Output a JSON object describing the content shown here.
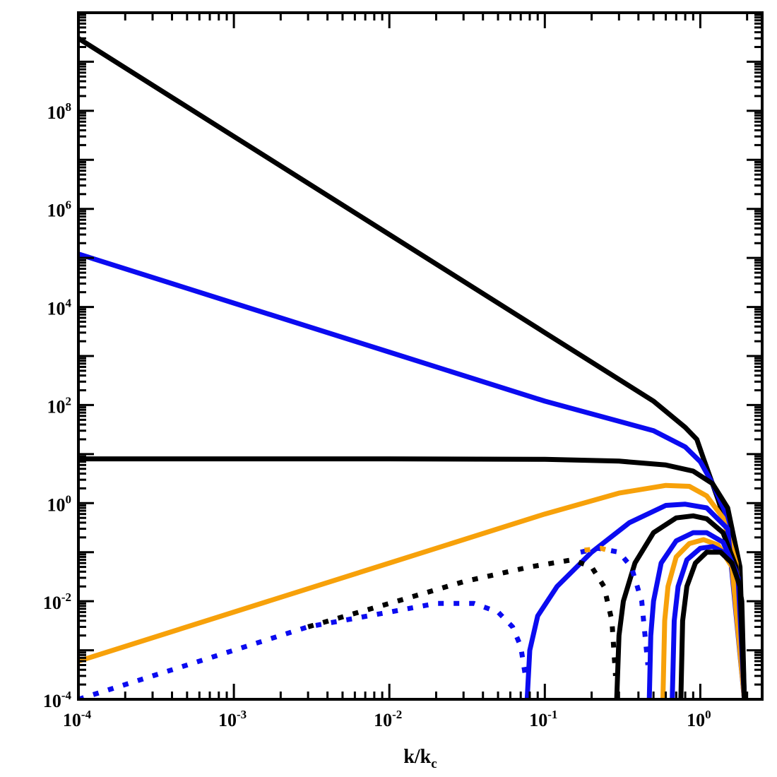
{
  "chart_data": {
    "type": "line",
    "title": "",
    "xlabel": {
      "base": "k/k",
      "sub": "c"
    },
    "ylabel": "",
    "x_scale": "log",
    "y_scale": "log",
    "xlim": [
      0.0001,
      2.5
    ],
    "ylim": [
      0.0001,
      10000000000
    ],
    "x_ticks": [
      {
        "value": 0.0001,
        "base": "10",
        "exp": "-4"
      },
      {
        "value": 0.001,
        "base": "10",
        "exp": "-3"
      },
      {
        "value": 0.01,
        "base": "10",
        "exp": "-2"
      },
      {
        "value": 0.1,
        "base": "10",
        "exp": "-1"
      },
      {
        "value": 1,
        "base": "10",
        "exp": "0"
      }
    ],
    "y_ticks": [
      {
        "value": 0.0001,
        "base": "10",
        "exp": "-4"
      },
      {
        "value": 0.01,
        "base": "10",
        "exp": "-2"
      },
      {
        "value": 1,
        "base": "10",
        "exp": "0"
      },
      {
        "value": 100,
        "base": "10",
        "exp": "2"
      },
      {
        "value": 10000,
        "base": "10",
        "exp": "4"
      },
      {
        "value": 1000000,
        "base": "10",
        "exp": "6"
      },
      {
        "value": 100000000,
        "base": "10",
        "exp": "8"
      }
    ],
    "grid": false,
    "legend": "none",
    "series": [
      {
        "color": "#000000",
        "dash": "solid",
        "x": [
          0.0001,
          0.001,
          0.01,
          0.1,
          0.5,
          0.8,
          0.95,
          1.05,
          1.3,
          1.6,
          1.85,
          1.92
        ],
        "y": [
          3000000000.0,
          30000000.0,
          300000.0,
          3000,
          120,
          35,
          20,
          8,
          1.2,
          0.15,
          0.01,
          0.0001
        ]
      },
      {
        "color": "#0b0bf0",
        "dash": "solid",
        "x": [
          0.0001,
          0.001,
          0.01,
          0.1,
          0.5,
          0.8,
          1.0,
          1.2,
          1.5,
          1.8,
          1.92
        ],
        "y": [
          120000.0,
          12000,
          1200,
          120,
          30,
          14,
          7,
          2.5,
          0.5,
          0.03,
          0.0001
        ]
      },
      {
        "color": "#000000",
        "dash": "solid",
        "x": [
          0.0001,
          0.01,
          0.1,
          0.3,
          0.6,
          0.9,
          1.2,
          1.5,
          1.8,
          1.92
        ],
        "y": [
          8,
          8,
          7.8,
          7.2,
          6,
          4.5,
          2.5,
          0.8,
          0.05,
          0.0001
        ]
      },
      {
        "color": "#f7a10a",
        "dash": "solid",
        "x": [
          0.0001,
          0.001,
          0.01,
          0.1,
          0.3,
          0.6,
          0.85,
          1.1,
          1.4,
          1.7,
          1.92
        ],
        "y": [
          0.0006,
          0.006,
          0.06,
          0.6,
          1.6,
          2.3,
          2.2,
          1.4,
          0.5,
          0.06,
          0.0001
        ]
      },
      {
        "color": "#0b0bf0",
        "dash": "solid",
        "x": [
          0.077,
          0.08,
          0.09,
          0.12,
          0.2,
          0.35,
          0.6,
          0.8,
          1.1,
          1.5,
          1.92
        ],
        "y": [
          0.0001,
          0.001,
          0.005,
          0.02,
          0.1,
          0.4,
          0.9,
          0.95,
          0.8,
          0.3,
          0.0001
        ]
      },
      {
        "color": "#000000",
        "dash": "solid",
        "x": [
          0.29,
          0.3,
          0.32,
          0.38,
          0.5,
          0.7,
          0.9,
          1.1,
          1.4,
          1.7,
          1.92
        ],
        "y": [
          0.0001,
          0.002,
          0.01,
          0.06,
          0.25,
          0.5,
          0.55,
          0.48,
          0.25,
          0.05,
          0.0001
        ]
      },
      {
        "color": "#0b0bf0",
        "dash": "solid",
        "x": [
          0.47,
          0.48,
          0.5,
          0.56,
          0.7,
          0.9,
          1.1,
          1.4,
          1.7,
          1.92
        ],
        "y": [
          0.0001,
          0.002,
          0.01,
          0.06,
          0.17,
          0.25,
          0.25,
          0.16,
          0.04,
          0.0001
        ]
      },
      {
        "color": "#f7a10a",
        "dash": "solid",
        "x": [
          0.575,
          0.59,
          0.62,
          0.7,
          0.85,
          1.05,
          1.3,
          1.6,
          1.92
        ],
        "y": [
          0.0001,
          0.004,
          0.02,
          0.08,
          0.15,
          0.18,
          0.14,
          0.05,
          0.0001
        ]
      },
      {
        "color": "#0b0bf0",
        "dash": "solid",
        "x": [
          0.66,
          0.68,
          0.72,
          0.82,
          1.0,
          1.2,
          1.5,
          1.75,
          1.92
        ],
        "y": [
          0.0001,
          0.004,
          0.02,
          0.07,
          0.12,
          0.13,
          0.09,
          0.03,
          0.0001
        ]
      },
      {
        "color": "#000000",
        "dash": "solid",
        "x": [
          0.75,
          0.77,
          0.82,
          0.93,
          1.1,
          1.35,
          1.6,
          1.8,
          1.92
        ],
        "y": [
          0.0001,
          0.004,
          0.02,
          0.06,
          0.1,
          0.1,
          0.06,
          0.02,
          0.0001
        ]
      },
      {
        "color": "#0b0bf0",
        "dash": "dotted",
        "x": [
          0.0001,
          0.0003,
          0.001,
          0.003,
          0.01,
          0.02,
          0.035,
          0.05,
          0.062,
          0.07,
          0.075
        ],
        "y": [
          0.0001,
          0.0003,
          0.001,
          0.003,
          0.006,
          0.009,
          0.009,
          0.006,
          0.003,
          0.0012,
          0.0003
        ]
      },
      {
        "color": "#000000",
        "dash": "dotted",
        "x": [
          0.003,
          0.01,
          0.03,
          0.08,
          0.15,
          0.2,
          0.24,
          0.27,
          0.285
        ],
        "y": [
          0.003,
          0.009,
          0.025,
          0.05,
          0.07,
          0.05,
          0.02,
          0.004,
          0.0003
        ]
      },
      {
        "color": "#0b0bf0",
        "dash": "dotted",
        "x": [
          0.17,
          0.22,
          0.3,
          0.36,
          0.42,
          0.46
        ],
        "y": [
          0.1,
          0.12,
          0.1,
          0.05,
          0.01,
          0.0005
        ]
      },
      {
        "color": "#f7a10a",
        "dash": "dotted",
        "x": [
          0.18,
          0.23,
          0.28
        ],
        "y": [
          0.11,
          0.12,
          0.1
        ]
      }
    ]
  }
}
